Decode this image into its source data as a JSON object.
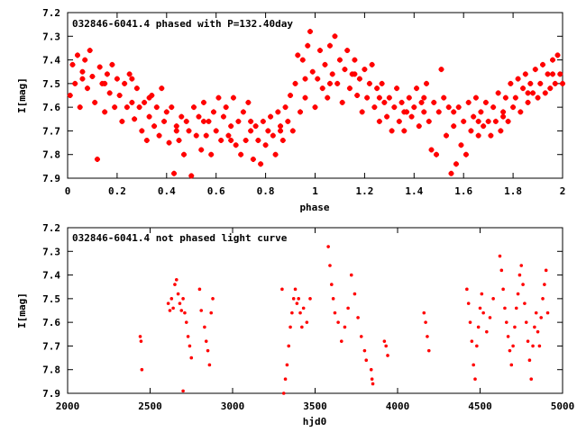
{
  "colors": {
    "series": "#ff0000",
    "axes": "#000000",
    "background": "#ffffff"
  },
  "chart_data": [
    {
      "type": "scatter",
      "title": "032846-6041.4 phased with P=132.40day",
      "xlabel": "phase",
      "ylabel": "I[mag]",
      "xlim": [
        0,
        2
      ],
      "ylim": [
        7.2,
        7.9
      ],
      "y_inverted": true,
      "grid": false,
      "marker": "star",
      "xticks": [
        0,
        0.2,
        0.4,
        0.6,
        0.8,
        1,
        1.2,
        1.4,
        1.6,
        1.8,
        2
      ],
      "xtick_labels": [
        "0",
        "0.2",
        "0.4",
        "0.6",
        "0.8",
        "1",
        "1.2",
        "1.4",
        "1.6",
        "1.8",
        "2"
      ],
      "yticks": [
        7.2,
        7.3,
        7.4,
        7.5,
        7.6,
        7.7,
        7.8,
        7.9
      ],
      "ytick_labels": [
        "7.2",
        "7.3",
        "7.4",
        "7.5",
        "7.6",
        "7.7",
        "7.8",
        "7.9"
      ],
      "points": [
        [
          0.01,
          7.55
        ],
        [
          0.02,
          7.42
        ],
        [
          0.03,
          7.5
        ],
        [
          0.04,
          7.38
        ],
        [
          0.05,
          7.6
        ],
        [
          0.06,
          7.45
        ],
        [
          0.07,
          7.4
        ],
        [
          0.08,
          7.52
        ],
        [
          0.09,
          7.36
        ],
        [
          0.1,
          7.47
        ],
        [
          0.11,
          7.58
        ],
        [
          0.12,
          7.82
        ],
        [
          0.13,
          7.43
        ],
        [
          0.14,
          7.5
        ],
        [
          0.15,
          7.62
        ],
        [
          0.16,
          7.46
        ],
        [
          0.17,
          7.54
        ],
        [
          0.18,
          7.42
        ],
        [
          0.19,
          7.6
        ],
        [
          0.2,
          7.48
        ],
        [
          0.21,
          7.55
        ],
        [
          0.22,
          7.66
        ],
        [
          0.23,
          7.5
        ],
        [
          0.24,
          7.6
        ],
        [
          0.25,
          7.46
        ],
        [
          0.26,
          7.58
        ],
        [
          0.27,
          7.65
        ],
        [
          0.28,
          7.52
        ],
        [
          0.29,
          7.6
        ],
        [
          0.3,
          7.7
        ],
        [
          0.31,
          7.58
        ],
        [
          0.32,
          7.74
        ],
        [
          0.33,
          7.64
        ],
        [
          0.34,
          7.55
        ],
        [
          0.35,
          7.68
        ],
        [
          0.36,
          7.6
        ],
        [
          0.37,
          7.72
        ],
        [
          0.38,
          7.52
        ],
        [
          0.39,
          7.66
        ],
        [
          0.4,
          7.62
        ],
        [
          0.41,
          7.75
        ],
        [
          0.42,
          7.6
        ],
        [
          0.43,
          7.88
        ],
        [
          0.44,
          7.68
        ],
        [
          0.45,
          7.74
        ],
        [
          0.46,
          7.64
        ],
        [
          0.47,
          7.8
        ],
        [
          0.48,
          7.66
        ],
        [
          0.49,
          7.7
        ],
        [
          0.5,
          7.89
        ],
        [
          0.51,
          7.6
        ],
        [
          0.52,
          7.72
        ],
        [
          0.53,
          7.64
        ],
        [
          0.54,
          7.78
        ],
        [
          0.55,
          7.58
        ],
        [
          0.56,
          7.72
        ],
        [
          0.57,
          7.66
        ],
        [
          0.58,
          7.8
        ],
        [
          0.59,
          7.62
        ],
        [
          0.6,
          7.7
        ],
        [
          0.61,
          7.56
        ],
        [
          0.62,
          7.74
        ],
        [
          0.63,
          7.64
        ],
        [
          0.64,
          7.6
        ],
        [
          0.65,
          7.72
        ],
        [
          0.66,
          7.68
        ],
        [
          0.67,
          7.56
        ],
        [
          0.68,
          7.76
        ],
        [
          0.69,
          7.66
        ],
        [
          0.7,
          7.8
        ],
        [
          0.71,
          7.62
        ],
        [
          0.72,
          7.74
        ],
        [
          0.73,
          7.58
        ],
        [
          0.74,
          7.7
        ],
        [
          0.75,
          7.82
        ],
        [
          0.76,
          7.68
        ],
        [
          0.77,
          7.74
        ],
        [
          0.78,
          7.84
        ],
        [
          0.79,
          7.66
        ],
        [
          0.8,
          7.76
        ],
        [
          0.81,
          7.7
        ],
        [
          0.82,
          7.64
        ],
        [
          0.83,
          7.72
        ],
        [
          0.84,
          7.8
        ],
        [
          0.85,
          7.62
        ],
        [
          0.86,
          7.68
        ],
        [
          0.87,
          7.74
        ],
        [
          0.88,
          7.6
        ],
        [
          0.89,
          7.66
        ],
        [
          0.9,
          7.55
        ],
        [
          0.91,
          7.7
        ],
        [
          0.92,
          7.5
        ],
        [
          0.93,
          7.38
        ],
        [
          0.94,
          7.62
        ],
        [
          0.95,
          7.4
        ],
        [
          0.96,
          7.56
        ],
        [
          0.97,
          7.34
        ],
        [
          0.98,
          7.28
        ],
        [
          0.99,
          7.45
        ],
        [
          1.0,
          7.6
        ],
        [
          1.01,
          7.48
        ],
        [
          1.02,
          7.36
        ],
        [
          1.03,
          7.52
        ],
        [
          1.04,
          7.42
        ],
        [
          1.05,
          7.56
        ],
        [
          1.06,
          7.34
        ],
        [
          1.07,
          7.46
        ],
        [
          1.08,
          7.3
        ],
        [
          1.09,
          7.5
        ],
        [
          1.1,
          7.4
        ],
        [
          1.11,
          7.58
        ],
        [
          1.12,
          7.44
        ],
        [
          1.13,
          7.36
        ],
        [
          1.14,
          7.52
        ],
        [
          1.15,
          7.46
        ],
        [
          1.16,
          7.4
        ],
        [
          1.17,
          7.55
        ],
        [
          1.18,
          7.48
        ],
        [
          1.19,
          7.62
        ],
        [
          1.2,
          7.44
        ],
        [
          1.21,
          7.56
        ],
        [
          1.22,
          7.5
        ],
        [
          1.23,
          7.42
        ],
        [
          1.24,
          7.6
        ],
        [
          1.25,
          7.52
        ],
        [
          1.26,
          7.66
        ],
        [
          1.27,
          7.5
        ],
        [
          1.28,
          7.58
        ],
        [
          1.29,
          7.64
        ],
        [
          1.3,
          7.56
        ],
        [
          1.31,
          7.7
        ],
        [
          1.32,
          7.6
        ],
        [
          1.33,
          7.52
        ],
        [
          1.34,
          7.66
        ],
        [
          1.35,
          7.58
        ],
        [
          1.36,
          7.7
        ],
        [
          1.37,
          7.62
        ],
        [
          1.38,
          7.56
        ],
        [
          1.39,
          7.64
        ],
        [
          1.4,
          7.6
        ],
        [
          1.41,
          7.52
        ],
        [
          1.42,
          7.68
        ],
        [
          1.43,
          7.58
        ],
        [
          1.44,
          7.62
        ],
        [
          1.45,
          7.5
        ],
        [
          1.46,
          7.66
        ],
        [
          1.47,
          7.78
        ],
        [
          1.48,
          7.58
        ],
        [
          1.49,
          7.8
        ],
        [
          1.5,
          7.62
        ],
        [
          1.51,
          7.44
        ],
        [
          1.52,
          7.56
        ],
        [
          1.53,
          7.72
        ],
        [
          1.54,
          7.6
        ],
        [
          1.55,
          7.88
        ],
        [
          1.56,
          7.68
        ],
        [
          1.57,
          7.84
        ],
        [
          1.58,
          7.6
        ],
        [
          1.59,
          7.76
        ],
        [
          1.6,
          7.66
        ],
        [
          1.61,
          7.8
        ],
        [
          1.62,
          7.58
        ],
        [
          1.63,
          7.7
        ],
        [
          1.64,
          7.64
        ],
        [
          1.65,
          7.56
        ],
        [
          1.66,
          7.72
        ],
        [
          1.67,
          7.62
        ],
        [
          1.68,
          7.68
        ],
        [
          1.69,
          7.58
        ],
        [
          1.7,
          7.66
        ],
        [
          1.71,
          7.72
        ],
        [
          1.72,
          7.6
        ],
        [
          1.73,
          7.66
        ],
        [
          1.74,
          7.54
        ],
        [
          1.75,
          7.7
        ],
        [
          1.76,
          7.62
        ],
        [
          1.77,
          7.56
        ],
        [
          1.78,
          7.66
        ],
        [
          1.79,
          7.5
        ],
        [
          1.8,
          7.6
        ],
        [
          1.81,
          7.56
        ],
        [
          1.82,
          7.48
        ],
        [
          1.83,
          7.62
        ],
        [
          1.84,
          7.52
        ],
        [
          1.85,
          7.46
        ],
        [
          1.86,
          7.58
        ],
        [
          1.87,
          7.5
        ],
        [
          1.88,
          7.54
        ],
        [
          1.89,
          7.44
        ],
        [
          1.9,
          7.56
        ],
        [
          1.91,
          7.5
        ],
        [
          1.92,
          7.42
        ],
        [
          1.93,
          7.54
        ],
        [
          1.94,
          7.46
        ],
        [
          1.95,
          7.52
        ],
        [
          1.96,
          7.4
        ],
        [
          1.97,
          7.5
        ],
        [
          1.98,
          7.38
        ],
        [
          1.99,
          7.46
        ],
        [
          2.0,
          7.5
        ],
        [
          0.06,
          7.48
        ],
        [
          0.15,
          7.5
        ],
        [
          0.26,
          7.48
        ],
        [
          0.33,
          7.56
        ],
        [
          0.44,
          7.7
        ],
        [
          0.55,
          7.66
        ],
        [
          0.66,
          7.74
        ],
        [
          0.74,
          7.66
        ],
        [
          0.86,
          7.7
        ],
        [
          0.96,
          7.48
        ],
        [
          1.06,
          7.5
        ],
        [
          1.16,
          7.46
        ],
        [
          1.26,
          7.56
        ],
        [
          1.36,
          7.62
        ],
        [
          1.44,
          7.56
        ],
        [
          1.56,
          7.62
        ],
        [
          1.66,
          7.66
        ],
        [
          1.76,
          7.64
        ],
        [
          1.86,
          7.54
        ],
        [
          1.96,
          7.46
        ]
      ]
    },
    {
      "type": "scatter",
      "title": "032846-6041.4 not phased light curve",
      "xlabel": "hjd0",
      "ylabel": "I[mag]",
      "xlim": [
        2000,
        5000
      ],
      "ylim": [
        7.2,
        7.9
      ],
      "y_inverted": true,
      "grid": false,
      "marker": "dot",
      "xticks": [
        2000,
        2500,
        3000,
        3500,
        4000,
        4500,
        5000
      ],
      "xtick_labels": [
        "2000",
        "2500",
        "3000",
        "3500",
        "4000",
        "4500",
        "5000"
      ],
      "yticks": [
        7.2,
        7.3,
        7.4,
        7.5,
        7.6,
        7.7,
        7.8,
        7.9
      ],
      "ytick_labels": [
        "7.2",
        "7.3",
        "7.4",
        "7.5",
        "7.6",
        "7.7",
        "7.8",
        "7.9"
      ],
      "points": [
        [
          2440,
          7.66
        ],
        [
          2445,
          7.68
        ],
        [
          2450,
          7.8
        ],
        [
          2610,
          7.52
        ],
        [
          2620,
          7.55
        ],
        [
          2630,
          7.5
        ],
        [
          2640,
          7.54
        ],
        [
          2650,
          7.44
        ],
        [
          2660,
          7.42
        ],
        [
          2670,
          7.48
        ],
        [
          2680,
          7.52
        ],
        [
          2690,
          7.55
        ],
        [
          2700,
          7.5
        ],
        [
          2710,
          7.56
        ],
        [
          2720,
          7.6
        ],
        [
          2730,
          7.66
        ],
        [
          2740,
          7.7
        ],
        [
          2750,
          7.75
        ],
        [
          2700,
          7.89
        ],
        [
          2800,
          7.46
        ],
        [
          2810,
          7.55
        ],
        [
          2830,
          7.62
        ],
        [
          2840,
          7.68
        ],
        [
          2850,
          7.72
        ],
        [
          2860,
          7.78
        ],
        [
          2870,
          7.56
        ],
        [
          2880,
          7.5
        ],
        [
          3310,
          7.9
        ],
        [
          3320,
          7.84
        ],
        [
          3330,
          7.78
        ],
        [
          3340,
          7.7
        ],
        [
          3350,
          7.62
        ],
        [
          3360,
          7.56
        ],
        [
          3370,
          7.5
        ],
        [
          3380,
          7.46
        ],
        [
          3390,
          7.52
        ],
        [
          3400,
          7.5
        ],
        [
          3410,
          7.56
        ],
        [
          3420,
          7.62
        ],
        [
          3430,
          7.54
        ],
        [
          3450,
          7.6
        ],
        [
          3470,
          7.5
        ],
        [
          3300,
          7.46
        ],
        [
          3580,
          7.28
        ],
        [
          3590,
          7.36
        ],
        [
          3600,
          7.44
        ],
        [
          3610,
          7.5
        ],
        [
          3620,
          7.56
        ],
        [
          3640,
          7.6
        ],
        [
          3660,
          7.68
        ],
        [
          3680,
          7.62
        ],
        [
          3700,
          7.54
        ],
        [
          3720,
          7.4
        ],
        [
          3740,
          7.48
        ],
        [
          3760,
          7.58
        ],
        [
          3780,
          7.66
        ],
        [
          3800,
          7.72
        ],
        [
          3810,
          7.76
        ],
        [
          3840,
          7.8
        ],
        [
          3845,
          7.84
        ],
        [
          3850,
          7.86
        ],
        [
          3920,
          7.68
        ],
        [
          3930,
          7.7
        ],
        [
          3940,
          7.74
        ],
        [
          4160,
          7.56
        ],
        [
          4170,
          7.6
        ],
        [
          4180,
          7.66
        ],
        [
          4190,
          7.72
        ],
        [
          4420,
          7.46
        ],
        [
          4430,
          7.52
        ],
        [
          4440,
          7.6
        ],
        [
          4450,
          7.68
        ],
        [
          4460,
          7.78
        ],
        [
          4470,
          7.84
        ],
        [
          4480,
          7.7
        ],
        [
          4490,
          7.62
        ],
        [
          4500,
          7.54
        ],
        [
          4510,
          7.48
        ],
        [
          4520,
          7.56
        ],
        [
          4540,
          7.64
        ],
        [
          4560,
          7.58
        ],
        [
          4580,
          7.5
        ],
        [
          4620,
          7.32
        ],
        [
          4630,
          7.38
        ],
        [
          4640,
          7.46
        ],
        [
          4650,
          7.54
        ],
        [
          4660,
          7.6
        ],
        [
          4670,
          7.66
        ],
        [
          4680,
          7.72
        ],
        [
          4690,
          7.78
        ],
        [
          4700,
          7.7
        ],
        [
          4710,
          7.62
        ],
        [
          4720,
          7.54
        ],
        [
          4730,
          7.48
        ],
        [
          4740,
          7.4
        ],
        [
          4750,
          7.36
        ],
        [
          4760,
          7.44
        ],
        [
          4770,
          7.52
        ],
        [
          4780,
          7.6
        ],
        [
          4790,
          7.68
        ],
        [
          4800,
          7.76
        ],
        [
          4810,
          7.84
        ],
        [
          4820,
          7.7
        ],
        [
          4830,
          7.62
        ],
        [
          4840,
          7.56
        ],
        [
          4850,
          7.64
        ],
        [
          4860,
          7.7
        ],
        [
          4870,
          7.58
        ],
        [
          4880,
          7.5
        ],
        [
          4890,
          7.44
        ],
        [
          4900,
          7.38
        ],
        [
          4910,
          7.56
        ]
      ]
    }
  ]
}
